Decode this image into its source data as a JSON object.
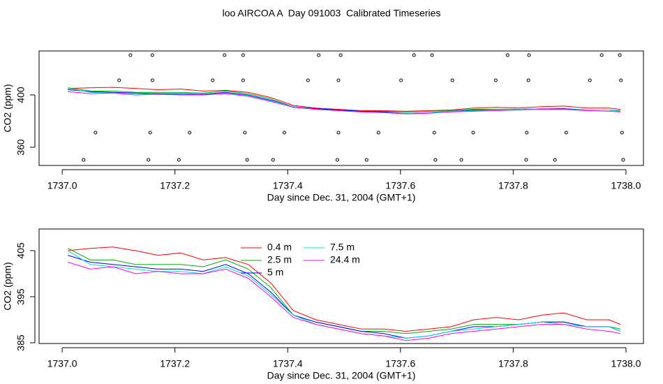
{
  "chart_data": [
    {
      "type": "line",
      "title": "loo AIRCOA A  Day 091003  Calibrated Timeseries",
      "x_label": "Day since Dec. 31, 2004 (GMT+1)",
      "y_label": "CO2 (ppm)",
      "xlim": [
        1736.959,
        1738.031
      ],
      "ylim": [
        346.1,
        433.6
      ],
      "xticks": [
        {
          "value": 1737,
          "label": "1737.0"
        },
        {
          "value": 1737.2,
          "label": "1737.2"
        },
        {
          "value": 1737.4,
          "label": "1737.4"
        },
        {
          "value": 1737.6,
          "label": "1737.6"
        },
        {
          "value": 1737.8,
          "label": "1737.8"
        },
        {
          "value": 1738,
          "label": "1738.0"
        }
      ],
      "yticks": [
        360,
        400
      ],
      "x": [
        1737.01,
        1737.05,
        1737.09,
        1737.13,
        1737.17,
        1737.21,
        1737.25,
        1737.29,
        1737.33,
        1737.37,
        1737.41,
        1737.45,
        1737.49,
        1737.53,
        1737.57,
        1737.61,
        1737.65,
        1737.69,
        1737.73,
        1737.77,
        1737.81,
        1737.85,
        1737.89,
        1737.93,
        1737.97,
        1737.99
      ],
      "series": [
        {
          "color": "#ff0000",
          "values": [
            405,
            405.5,
            405.8,
            405,
            404,
            404.5,
            403,
            403.5,
            402,
            398,
            392,
            390,
            389,
            388,
            388,
            387.5,
            388,
            388.5,
            390,
            390.5,
            390,
            391,
            391.5,
            390,
            390,
            389
          ]
        },
        {
          "color": "#00b000",
          "values": [
            405.5,
            403,
            403,
            402,
            402,
            402,
            401.5,
            403,
            401,
            397,
            391,
            389.5,
            388.5,
            387.5,
            387.5,
            387,
            387.5,
            388,
            389,
            389,
            389,
            389.5,
            389.5,
            388.5,
            388.5,
            388
          ]
        },
        {
          "color": "#0000ff",
          "values": [
            404,
            402.5,
            402,
            401.5,
            401,
            401,
            400.5,
            402,
            400,
            396,
            391,
            389.5,
            388.5,
            387.5,
            387,
            386,
            386.5,
            387.5,
            388.5,
            388.5,
            389,
            389.5,
            389.5,
            388.5,
            388.5,
            387.5
          ]
        },
        {
          "color": "#00dddd",
          "values": [
            405,
            402,
            401.5,
            401,
            400.5,
            400.5,
            400,
            401.5,
            399.5,
            395.5,
            391,
            389,
            388,
            387,
            386.5,
            386,
            386.5,
            387.5,
            388,
            388.5,
            389,
            389.5,
            389,
            388.5,
            388.5,
            387.5
          ]
        },
        {
          "color": "#ff00ff",
          "values": [
            402.5,
            401,
            401.5,
            400,
            400.5,
            400,
            400,
            401,
            399,
            395,
            390.5,
            389,
            388,
            387,
            386.5,
            385.5,
            386,
            387,
            387.5,
            388,
            388.5,
            389,
            389,
            388,
            387.5,
            387
          ]
        }
      ],
      "points": {
        "color": "#000000",
        "x": [
          1737.121,
          1737.16,
          1737.288,
          1737.321,
          1737.455,
          1737.494,
          1737.624,
          1737.656,
          1737.79,
          1737.828,
          1737.957,
          1737.989,
          1737.101,
          1737.16,
          1737.267,
          1737.321,
          1737.436,
          1737.49,
          1737.601,
          1737.692,
          1737.769,
          1737.827,
          1737.936,
          1737.991,
          1737.059,
          1737.156,
          1737.226,
          1737.324,
          1737.394,
          1737.49,
          1737.561,
          1737.66,
          1737.729,
          1737.824,
          1737.894,
          1737.993,
          1737.038,
          1737.153,
          1737.207,
          1737.328,
          1737.374,
          1737.488,
          1737.54,
          1737.662,
          1737.708,
          1737.823,
          1737.874,
          1737.995
        ],
        "y": [
          430.4,
          430.4,
          430.4,
          430.4,
          430.4,
          430.4,
          430.4,
          430.4,
          430.4,
          430.4,
          430.4,
          430.4,
          411.2,
          411.2,
          411.2,
          411.2,
          411.2,
          411.2,
          411.2,
          411.2,
          411.2,
          411.2,
          411.2,
          411.2,
          371.2,
          371.2,
          371.2,
          371.2,
          371.2,
          371.2,
          371.2,
          371.2,
          371.2,
          371.2,
          371.2,
          371.2,
          350.4,
          350.4,
          350.4,
          350.4,
          350.4,
          350.4,
          350.4,
          350.4,
          350.4,
          350.4,
          350.4,
          350.4
        ]
      }
    },
    {
      "type": "line",
      "x_label": "Day since Dec. 31, 2004 (GMT+1)",
      "y_label": "CO2 (ppm)",
      "xlim": [
        1736.959,
        1738.031
      ],
      "ylim": [
        384.85,
        409.7
      ],
      "xticks": [
        {
          "value": 1737,
          "label": "1737.0"
        },
        {
          "value": 1737.2,
          "label": "1737.2"
        },
        {
          "value": 1737.4,
          "label": "1737.4"
        },
        {
          "value": 1737.6,
          "label": "1737.6"
        },
        {
          "value": 1737.8,
          "label": "1737.8"
        },
        {
          "value": 1738,
          "label": "1738.0"
        }
      ],
      "yticks": [
        385,
        395,
        405
      ],
      "legend": "top",
      "x": [
        1737.01,
        1737.05,
        1737.09,
        1737.13,
        1737.17,
        1737.21,
        1737.25,
        1737.29,
        1737.33,
        1737.37,
        1737.41,
        1737.45,
        1737.49,
        1737.53,
        1737.57,
        1737.61,
        1737.65,
        1737.69,
        1737.73,
        1737.77,
        1737.81,
        1737.85,
        1737.89,
        1737.93,
        1737.97,
        1737.99
      ],
      "series": [
        {
          "name": "0.4 m",
          "color": "#ff0000",
          "values": [
            405,
            405.5,
            405.8,
            405,
            404,
            404.5,
            403,
            403.5,
            402,
            398,
            392,
            390,
            389,
            388,
            388,
            387.5,
            388,
            388.5,
            390,
            390.5,
            390,
            391,
            391.5,
            390,
            390,
            389
          ]
        },
        {
          "name": "2.5 m",
          "color": "#00b000",
          "values": [
            405.5,
            403,
            403,
            402,
            402,
            402,
            401.5,
            403,
            401,
            397,
            391,
            389.5,
            388.5,
            387.5,
            387.5,
            387,
            387.5,
            388,
            389,
            389,
            389,
            389.5,
            389.5,
            388.5,
            388.5,
            388
          ]
        },
        {
          "name": "5 m",
          "color": "#0000ff",
          "values": [
            404,
            402.5,
            402,
            401.5,
            401,
            401,
            400.5,
            402,
            400,
            396,
            391,
            389.5,
            388.5,
            387.5,
            387,
            386,
            386.5,
            387.5,
            388.5,
            388.5,
            389,
            389.5,
            389.5,
            388.5,
            388.5,
            387.5
          ]
        },
        {
          "name": "7.5 m",
          "color": "#00dddd",
          "values": [
            405,
            402,
            401.5,
            401,
            400.5,
            400.5,
            400,
            401.5,
            399.5,
            395.5,
            391,
            389,
            388,
            387,
            386.5,
            386,
            386.5,
            387.5,
            388,
            388.5,
            389,
            389.5,
            389,
            388.5,
            388.5,
            387.5
          ]
        },
        {
          "name": "24.4 m",
          "color": "#ff00ff",
          "values": [
            402.5,
            401,
            401.5,
            400,
            400.5,
            400,
            400,
            401,
            399,
            395,
            390.5,
            389,
            388,
            387,
            386.5,
            385.5,
            386,
            387,
            387.5,
            388,
            388.5,
            389,
            389,
            388,
            387.5,
            387
          ]
        }
      ]
    }
  ]
}
